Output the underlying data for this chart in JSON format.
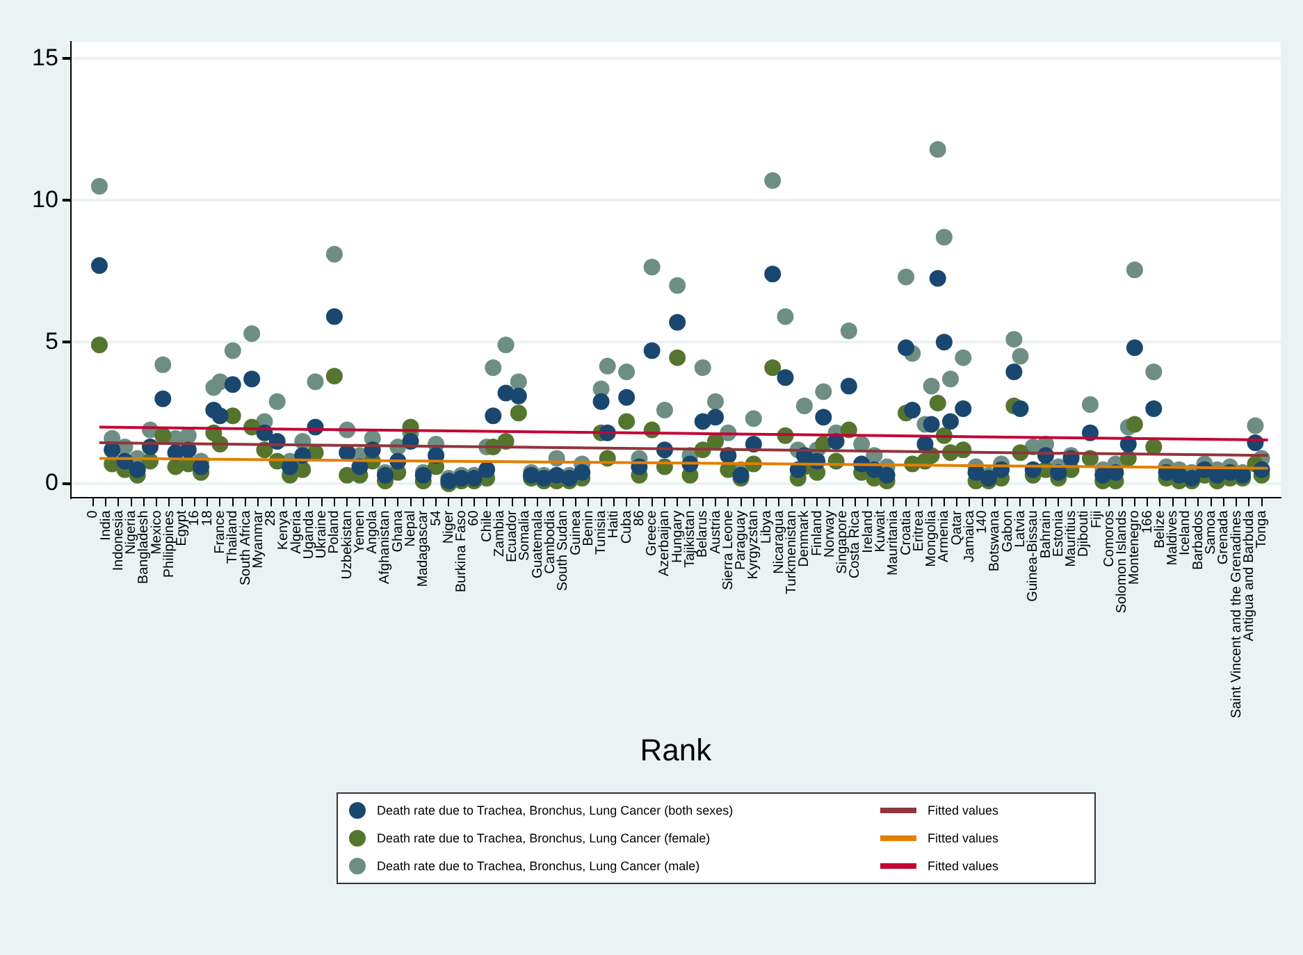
{
  "chart_data": {
    "type": "scatter",
    "xlabel": "Rank",
    "marker": "circle",
    "grid": "y",
    "legend": "bottom",
    "xlim": [
      -3.5,
      187
    ],
    "ylim": [
      -0.5,
      15.6
    ],
    "yticks": [
      0,
      5,
      10,
      15
    ],
    "xticks": [
      0,
      {
        "value": 2,
        "label": "India"
      },
      {
        "value": 4,
        "label": "Indonesia"
      },
      {
        "value": 6,
        "label": "Nigeria"
      },
      {
        "value": 8,
        "label": "Bangladesh"
      },
      {
        "value": 10,
        "label": "Mexico"
      },
      {
        "value": 12,
        "label": "Philippines"
      },
      {
        "value": 14,
        "label": "Egypt"
      },
      16,
      18,
      {
        "value": 20,
        "label": "France"
      },
      {
        "value": 22,
        "label": "Thailand"
      },
      {
        "value": 24,
        "label": "South Africa"
      },
      {
        "value": 26,
        "label": "Myanmar"
      },
      28,
      {
        "value": 30,
        "label": "Kenya"
      },
      {
        "value": 32,
        "label": "Algeria"
      },
      {
        "value": 34,
        "label": "Uganda"
      },
      {
        "value": 36,
        "label": "Ukraine"
      },
      {
        "value": 38,
        "label": "Poland"
      },
      {
        "value": 40,
        "label": "Uzbekistan"
      },
      {
        "value": 42,
        "label": "Yemen"
      },
      {
        "value": 44,
        "label": "Angola"
      },
      {
        "value": 46,
        "label": "Afghanistan"
      },
      {
        "value": 48,
        "label": "Ghana"
      },
      {
        "value": 50,
        "label": "Nepal"
      },
      {
        "value": 52,
        "label": "Madagascar"
      },
      54,
      {
        "value": 56,
        "label": "Niger"
      },
      {
        "value": 58,
        "label": "Burkina Faso"
      },
      60,
      {
        "value": 62,
        "label": "Chile"
      },
      {
        "value": 64,
        "label": "Zambia"
      },
      {
        "value": 66,
        "label": "Ecuador"
      },
      {
        "value": 68,
        "label": "Somalia"
      },
      {
        "value": 70,
        "label": "Guatemala"
      },
      {
        "value": 72,
        "label": "Cambodia"
      },
      {
        "value": 74,
        "label": "South Sudan"
      },
      {
        "value": 76,
        "label": "Guinea"
      },
      {
        "value": 78,
        "label": "Benin"
      },
      {
        "value": 80,
        "label": "Tunisia"
      },
      {
        "value": 82,
        "label": "Haiti"
      },
      {
        "value": 84,
        "label": "Cuba"
      },
      86,
      {
        "value": 88,
        "label": "Greece"
      },
      {
        "value": 90,
        "label": "Azerbaijan"
      },
      {
        "value": 92,
        "label": "Hungary"
      },
      {
        "value": 94,
        "label": "Tajikistan"
      },
      {
        "value": 96,
        "label": "Belarus"
      },
      {
        "value": 98,
        "label": "Austria"
      },
      {
        "value": 100,
        "label": "Sierra Leone"
      },
      {
        "value": 102,
        "label": "Paraguay"
      },
      {
        "value": 104,
        "label": "Kyrgyzstan"
      },
      {
        "value": 106,
        "label": "Libya"
      },
      {
        "value": 108,
        "label": "Nicaragua"
      },
      {
        "value": 110,
        "label": "Turkmenistan"
      },
      {
        "value": 112,
        "label": "Denmark"
      },
      {
        "value": 114,
        "label": "Finland"
      },
      {
        "value": 116,
        "label": "Norway"
      },
      {
        "value": 118,
        "label": "Singapore"
      },
      {
        "value": 120,
        "label": "Costa Rica"
      },
      {
        "value": 122,
        "label": "Ireland"
      },
      {
        "value": 124,
        "label": "Kuwait"
      },
      {
        "value": 126,
        "label": "Mauritania"
      },
      {
        "value": 128,
        "label": "Croatia"
      },
      {
        "value": 130,
        "label": "Eritrea"
      },
      {
        "value": 132,
        "label": "Mongolia"
      },
      {
        "value": 134,
        "label": "Armenia"
      },
      {
        "value": 136,
        "label": "Qatar"
      },
      {
        "value": 138,
        "label": "Jamaica"
      },
      140,
      {
        "value": 142,
        "label": "Botswana"
      },
      {
        "value": 144,
        "label": "Gabon"
      },
      {
        "value": 146,
        "label": "Latvia"
      },
      {
        "value": 148,
        "label": "Guinea-Bissau"
      },
      {
        "value": 150,
        "label": "Bahrain"
      },
      {
        "value": 152,
        "label": "Estonia"
      },
      {
        "value": 154,
        "label": "Mauritius"
      },
      {
        "value": 156,
        "label": "Djibouti"
      },
      {
        "value": 158,
        "label": "Fiji"
      },
      {
        "value": 160,
        "label": "Comoros"
      },
      {
        "value": 162,
        "label": "Solomon Islands"
      },
      {
        "value": 164,
        "label": "Montenegro"
      },
      166,
      {
        "value": 168,
        "label": "Belize"
      },
      {
        "value": 170,
        "label": "Maldives"
      },
      {
        "value": 172,
        "label": "Iceland"
      },
      {
        "value": 174,
        "label": "Barbados"
      },
      {
        "value": 176,
        "label": "Samoa"
      },
      {
        "value": 178,
        "label": "Grenada"
      },
      {
        "value": 180,
        "label": "Saint Vincent and the Grenadines"
      },
      {
        "value": 182,
        "label": "Antigua and Barbuda"
      },
      {
        "value": 184,
        "label": "Tonga"
      }
    ],
    "x": [
      1,
      3,
      5,
      7,
      9,
      11,
      13,
      15,
      17,
      19,
      20,
      22,
      25,
      27,
      29,
      31,
      33,
      35,
      38,
      40,
      42,
      44,
      46,
      48,
      50,
      52,
      54,
      56,
      58,
      60,
      62,
      63,
      65,
      67,
      69,
      71,
      73,
      75,
      77,
      80,
      81,
      84,
      86,
      88,
      90,
      92,
      94,
      96,
      98,
      100,
      102,
      104,
      107,
      109,
      111,
      112,
      114,
      115,
      117,
      119,
      121,
      123,
      125,
      128,
      129,
      131,
      132,
      133,
      134,
      135,
      137,
      139,
      141,
      143,
      145,
      146,
      148,
      150,
      152,
      154,
      157,
      159,
      161,
      163,
      164,
      167,
      169,
      171,
      173,
      175,
      177,
      179,
      181,
      183,
      184
    ],
    "series": [
      {
        "name": "Death rate due to Trachea, Bronchus, Lung Cancer (both sexes)",
        "color": "#1a476f",
        "values": [
          7.7,
          1.2,
          0.8,
          0.5,
          1.3,
          3.0,
          1.1,
          1.2,
          0.6,
          2.6,
          2.4,
          3.5,
          3.7,
          1.8,
          1.5,
          0.6,
          1.0,
          2.0,
          5.9,
          1.1,
          0.6,
          1.2,
          0.3,
          0.8,
          1.5,
          0.3,
          1.0,
          0.1,
          0.2,
          0.2,
          0.5,
          2.4,
          3.2,
          3.1,
          0.3,
          0.2,
          0.3,
          0.2,
          0.4,
          2.9,
          1.8,
          3.05,
          0.6,
          4.7,
          1.2,
          5.7,
          0.7,
          2.2,
          2.35,
          1.0,
          0.3,
          1.4,
          7.4,
          3.75,
          0.5,
          1.0,
          0.8,
          2.35,
          1.5,
          3.45,
          0.7,
          0.5,
          0.3,
          4.8,
          2.6,
          1.4,
          2.1,
          7.25,
          5.0,
          2.2,
          2.65,
          0.4,
          0.2,
          0.5,
          3.95,
          2.65,
          0.5,
          1.0,
          0.4,
          0.9,
          1.8,
          0.3,
          0.4,
          1.4,
          4.8,
          2.65,
          0.4,
          0.3,
          0.2,
          0.5,
          0.3,
          0.4,
          0.3,
          1.45,
          0.5
        ]
      },
      {
        "name": "Death rate due to Trachea, Bronchus, Lung Cancer (female)",
        "color": "#55752f",
        "values": [
          4.9,
          0.7,
          0.5,
          0.3,
          0.8,
          1.7,
          0.6,
          0.7,
          0.4,
          1.8,
          1.4,
          2.4,
          2.0,
          1.2,
          0.8,
          0.3,
          0.5,
          1.1,
          3.8,
          0.3,
          0.3,
          0.8,
          0.1,
          0.4,
          2.0,
          0.1,
          0.6,
          0.0,
          0.1,
          0.1,
          0.2,
          1.3,
          1.5,
          2.5,
          0.2,
          0.1,
          0.1,
          0.1,
          0.2,
          1.8,
          0.9,
          2.2,
          0.3,
          1.9,
          0.6,
          4.45,
          0.3,
          1.2,
          1.5,
          0.5,
          0.2,
          0.7,
          4.1,
          1.7,
          0.2,
          0.6,
          0.4,
          1.4,
          0.8,
          1.9,
          0.4,
          0.2,
          0.1,
          2.5,
          0.7,
          0.8,
          1.0,
          2.85,
          1.7,
          1.1,
          1.2,
          0.1,
          0.1,
          0.2,
          2.75,
          1.1,
          0.3,
          0.5,
          0.2,
          0.5,
          0.9,
          0.1,
          0.1,
          0.9,
          2.1,
          1.3,
          0.2,
          0.1,
          0.1,
          0.3,
          0.1,
          0.2,
          0.2,
          0.7,
          0.3
        ]
      },
      {
        "name": "Death rate due to Trachea, Bronchus, Lung Cancer (male)",
        "color": "#6e8e84",
        "values": [
          10.5,
          1.6,
          1.3,
          0.9,
          1.9,
          4.2,
          1.6,
          1.7,
          0.8,
          3.4,
          3.6,
          4.7,
          5.3,
          2.2,
          2.9,
          0.8,
          1.5,
          3.6,
          8.1,
          1.9,
          1.0,
          1.6,
          0.4,
          1.3,
          1.8,
          0.4,
          1.4,
          0.2,
          0.3,
          0.3,
          1.3,
          4.1,
          4.9,
          3.6,
          0.4,
          0.3,
          0.9,
          0.3,
          0.7,
          3.35,
          4.15,
          3.95,
          0.9,
          7.65,
          2.6,
          7.0,
          1.0,
          4.1,
          2.9,
          1.8,
          0.5,
          2.3,
          10.7,
          5.9,
          1.2,
          2.75,
          1.2,
          3.25,
          1.8,
          5.4,
          1.4,
          1.0,
          0.6,
          7.3,
          4.6,
          2.1,
          3.45,
          11.8,
          8.7,
          3.7,
          4.45,
          0.6,
          0.3,
          0.7,
          5.1,
          4.5,
          1.3,
          1.4,
          0.6,
          1.0,
          2.8,
          0.5,
          0.7,
          2.0,
          7.55,
          3.95,
          0.6,
          0.5,
          0.4,
          0.7,
          0.5,
          0.6,
          0.4,
          2.05,
          0.9
        ]
      },
      {
        "name": "Fitted values",
        "type": "line",
        "marker": "none",
        "color": "#90353b",
        "x": [
          1,
          47,
          93,
          139,
          185
        ],
        "values": [
          1.45,
          1.34,
          1.23,
          1.11,
          1.0
        ]
      },
      {
        "name": "Fitted values",
        "type": "line",
        "marker": "none",
        "color": "#e37e00",
        "x": [
          1,
          47,
          93,
          139,
          185
        ],
        "values": [
          0.9,
          0.81,
          0.73,
          0.64,
          0.55
        ]
      },
      {
        "name": "Fitted values",
        "type": "line",
        "marker": "none",
        "color": "#c10534",
        "x": [
          1,
          47,
          93,
          139,
          185
        ],
        "values": [
          2.0,
          1.89,
          1.78,
          1.66,
          1.55
        ]
      }
    ]
  }
}
